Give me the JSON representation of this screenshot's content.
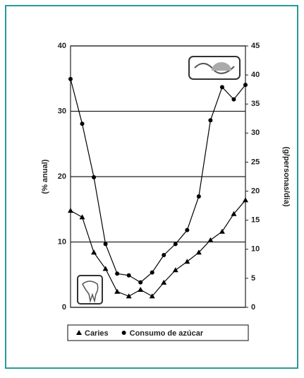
{
  "chart_data": {
    "type": "line",
    "ylabel": "(% anual)",
    "y2label": "(g/personas/dia)",
    "categories": [
      null,
      null,
      null,
      null,
      null,
      null,
      null,
      null,
      null,
      null,
      null,
      null,
      null,
      null,
      null,
      null
    ],
    "series": [
      {
        "name": "Caries",
        "color": "#000000",
        "marker": "triangle",
        "values": [
          14.8,
          13.8,
          8.4,
          5.9,
          2.4,
          1.7,
          2.7,
          1.7,
          3.8,
          5.7,
          7.0,
          8.4,
          10.3,
          11.6,
          14.3,
          16.4
        ]
      },
      {
        "name": "Consumo de azúcar",
        "color": "#000000",
        "marker": "circle",
        "axis": "y2",
        "values": [
          39.3,
          31.6,
          22.4,
          10.9,
          5.8,
          5.5,
          4.3,
          6.0,
          9.0,
          10.9,
          13.3,
          19.1,
          32.2,
          37.9,
          35.8,
          38.3
        ]
      }
    ],
    "ylim": [
      0,
      40
    ],
    "yticks": [
      0,
      10,
      20,
      30,
      40
    ],
    "y2lim": [
      0,
      45
    ],
    "y2ticks": [
      0,
      5,
      10,
      15,
      20,
      25,
      30,
      35,
      40,
      45
    ],
    "grid": true
  }
}
